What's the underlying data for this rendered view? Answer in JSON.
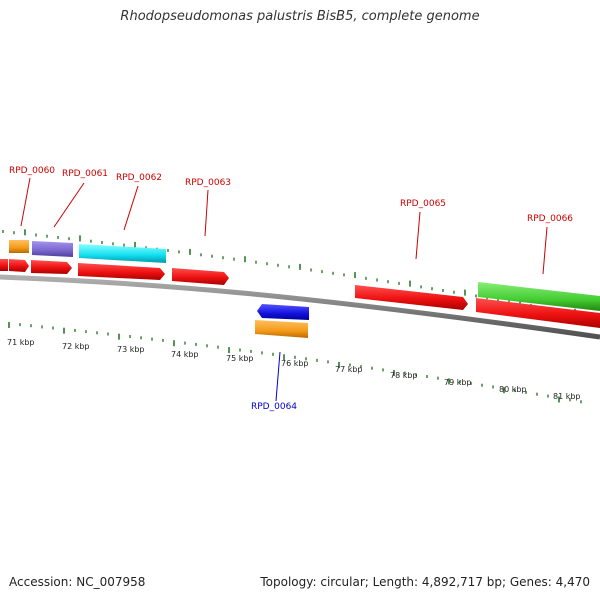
{
  "title": "Rhodopseudomonas palustris BisB5, complete genome",
  "footer": {
    "accession": "Accession: NC_007958",
    "stats": "Topology: circular; Length: 4,892,717 bp; Genes: 4,470"
  },
  "colors": {
    "label_forward": "#cc0000",
    "label_reverse": "#0000cc",
    "tick": "#2a7a2a",
    "backbone": "#808080",
    "cds_red": "#ee1111",
    "orange": "#f49a1a",
    "purple": "#7a66cc",
    "cyan": "#11ddee",
    "green": "#44cc33",
    "blue": "#1111dd"
  },
  "kbp_labels": [
    "71 kbp",
    "72 kbp",
    "73 kbp",
    "74 kbp",
    "75 kbp",
    "76 kbp",
    "77 kbp",
    "78 kbp",
    "79 kbp",
    "80 kbp",
    "81 kbp"
  ],
  "gene_labels": [
    {
      "text": "RPD_0060",
      "strand": "forward"
    },
    {
      "text": "RPD_0061",
      "strand": "forward"
    },
    {
      "text": "RPD_0062",
      "strand": "forward"
    },
    {
      "text": "RPD_0063",
      "strand": "forward"
    },
    {
      "text": "RPD_0064",
      "strand": "reverse"
    },
    {
      "text": "RPD_0065",
      "strand": "forward"
    },
    {
      "text": "RPD_0066",
      "strand": "forward"
    }
  ]
}
